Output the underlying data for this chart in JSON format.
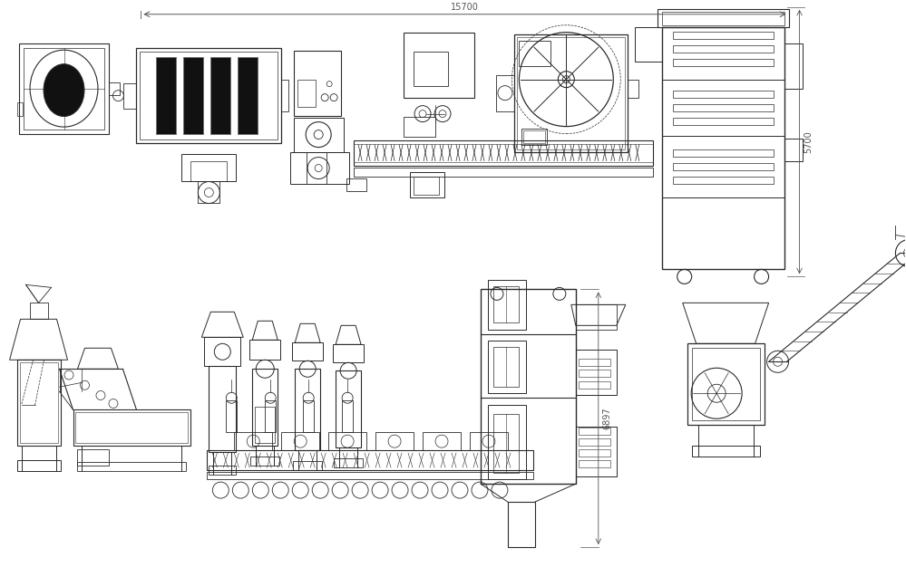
{
  "bg_color": "#ffffff",
  "lc": "#2a2a2a",
  "dc": "#555555",
  "dim_15700": "15700",
  "dim_5700": "5700",
  "dim_6897": "6897"
}
